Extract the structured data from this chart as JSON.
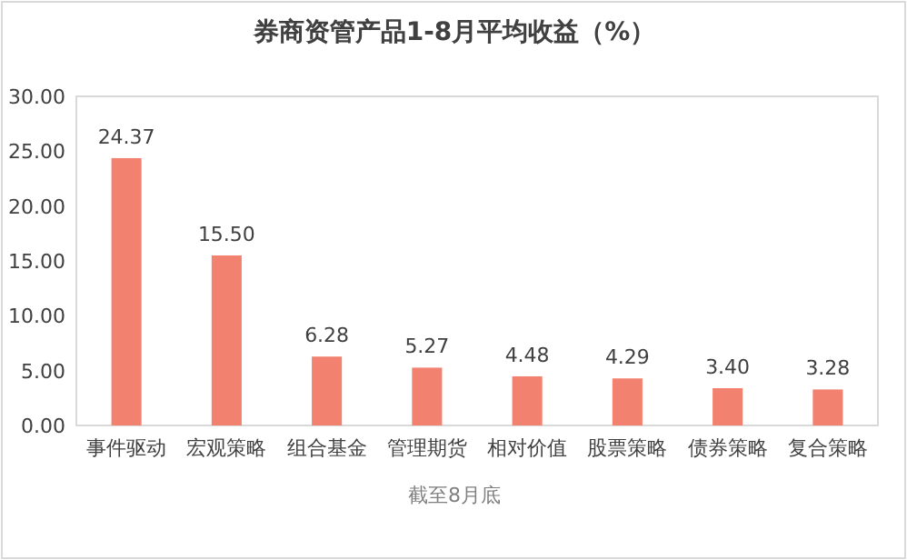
{
  "chart_data": {
    "type": "bar",
    "title": "券商资管产品1-8月平均收益（%）",
    "categories": [
      "事件驱动",
      "宏观策略",
      "组合基金",
      "管理期货",
      "相对价值",
      "股票策略",
      "债券策略",
      "复合策略"
    ],
    "values": [
      24.37,
      15.5,
      6.28,
      5.27,
      4.48,
      4.29,
      3.4,
      3.28
    ],
    "value_labels": [
      "24.37",
      "15.50",
      "6.28",
      "5.27",
      "4.48",
      "4.29",
      "3.40",
      "3.28"
    ],
    "color": "#f2826f",
    "ylim": [
      0,
      30
    ],
    "yticks": [
      {
        "value": 0,
        "label": "0.00"
      },
      {
        "value": 5,
        "label": "5.00"
      },
      {
        "value": 10,
        "label": "10.00"
      },
      {
        "value": 15,
        "label": "15.00"
      },
      {
        "value": 20,
        "label": "20.00"
      },
      {
        "value": 25,
        "label": "25.00"
      },
      {
        "value": 30,
        "label": "30.00"
      }
    ],
    "grid": false,
    "annotations": [
      "截至8月底"
    ]
  }
}
